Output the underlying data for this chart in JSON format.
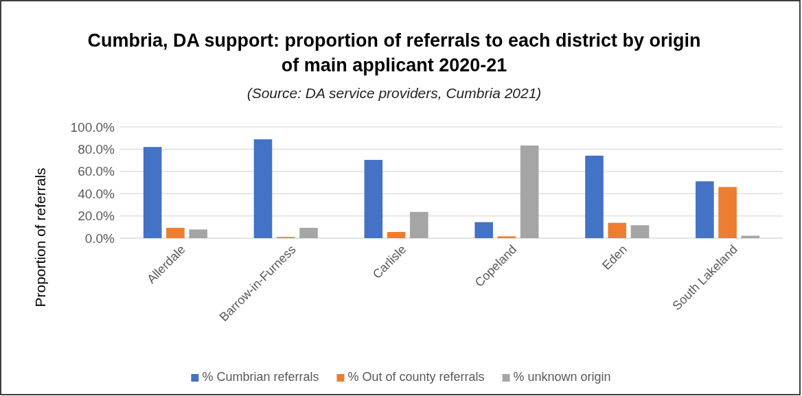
{
  "chart_data": {
    "type": "bar",
    "title": "Cumbria, DA support: proportion of referrals to each district by origin of main applicant 2020-21",
    "subtitle": "(Source: DA service providers, Cumbria 2021)",
    "ylabel": "Proportion of referrals",
    "categories": [
      "Allerdale",
      "Barrow-in-Furness",
      "Carlisle",
      "Copeland",
      "Eden",
      "South Lakeland"
    ],
    "series": [
      {
        "name": "% Cumbrian referrals",
        "color": "#4472c4",
        "values": [
          82.0,
          88.9,
          70.4,
          14.4,
          74.2,
          51.1
        ]
      },
      {
        "name": "% Out of county referrals",
        "color": "#ed7d31",
        "values": [
          9.3,
          1.1,
          5.6,
          1.6,
          13.8,
          46.0
        ]
      },
      {
        "name": "% unknown origin",
        "color": "#a5a5a5",
        "values": [
          7.8,
          9.3,
          23.6,
          83.3,
          11.6,
          2.2
        ]
      }
    ],
    "ylim": [
      0,
      100
    ],
    "yticks": [
      {
        "value": 0,
        "label": "0.0%"
      },
      {
        "value": 20,
        "label": "20.0%"
      },
      {
        "value": 40,
        "label": "40.0%"
      },
      {
        "value": 60,
        "label": "60.0%"
      },
      {
        "value": 80,
        "label": "80.0%"
      },
      {
        "value": 100,
        "label": "100.0%"
      }
    ],
    "grid": "y",
    "legend": "bottom"
  }
}
